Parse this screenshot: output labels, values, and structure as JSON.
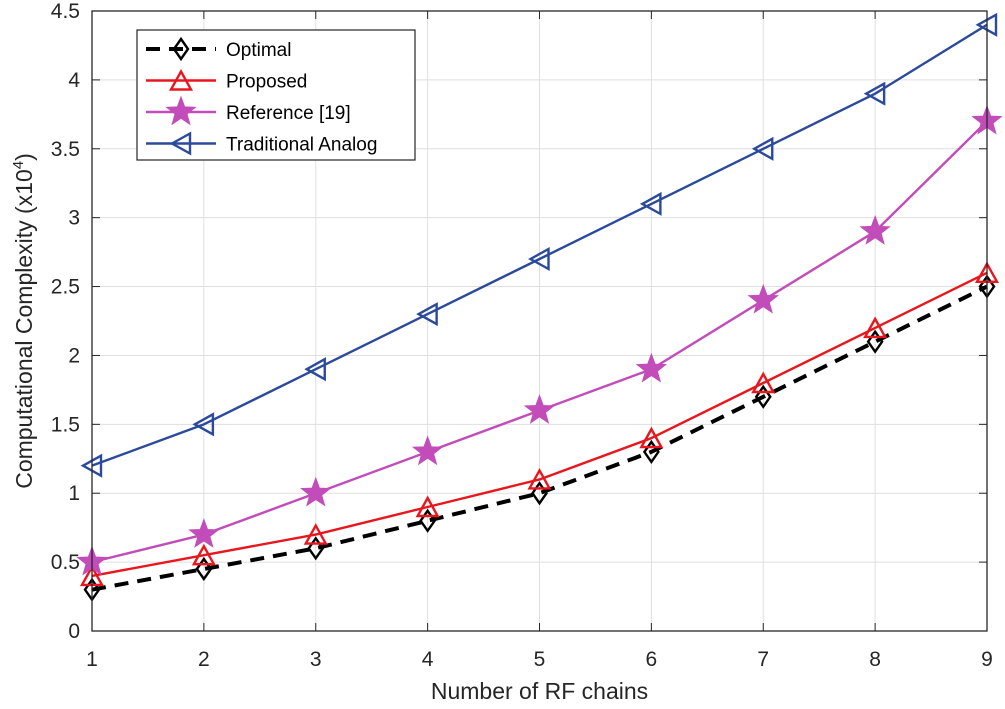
{
  "chart_data": {
    "type": "line",
    "xlabel": "Number of RF chains",
    "ylabel": "Computational Complexity (x10",
    "ylabel_exponent": "4",
    "ylabel_suffix": ")",
    "xlim": [
      1,
      9
    ],
    "ylim": [
      0,
      4.5
    ],
    "x_ticks": [
      "1",
      "2",
      "3",
      "4",
      "5",
      "6",
      "7",
      "8",
      "9"
    ],
    "y_ticks": [
      "0",
      "0.5",
      "1",
      "1.5",
      "2",
      "2.5",
      "3",
      "3.5",
      "4",
      "4.5"
    ],
    "grid": true,
    "legend_position": "top-left",
    "x": [
      1,
      2,
      3,
      4,
      5,
      6,
      7,
      8,
      9
    ],
    "series": [
      {
        "name": "Optimal",
        "values": [
          0.3,
          0.45,
          0.6,
          0.8,
          1.0,
          1.3,
          1.7,
          2.1,
          2.5
        ],
        "color": "#000000",
        "marker": "diamond",
        "dashed": true
      },
      {
        "name": "Proposed",
        "values": [
          0.4,
          0.55,
          0.7,
          0.9,
          1.1,
          1.4,
          1.8,
          2.2,
          2.6
        ],
        "color": "#e8171d",
        "marker": "triangle-up",
        "dashed": false
      },
      {
        "name": "Reference [19]",
        "values": [
          0.5,
          0.7,
          1.0,
          1.3,
          1.6,
          1.9,
          2.4,
          2.9,
          3.7
        ],
        "color": "#c24cb9",
        "marker": "star",
        "dashed": false
      },
      {
        "name": "Traditional Analog",
        "values": [
          1.2,
          1.5,
          1.9,
          2.3,
          2.7,
          3.1,
          3.5,
          3.9,
          4.4
        ],
        "color": "#2b4a9b",
        "marker": "triangle-left",
        "dashed": false
      }
    ]
  }
}
